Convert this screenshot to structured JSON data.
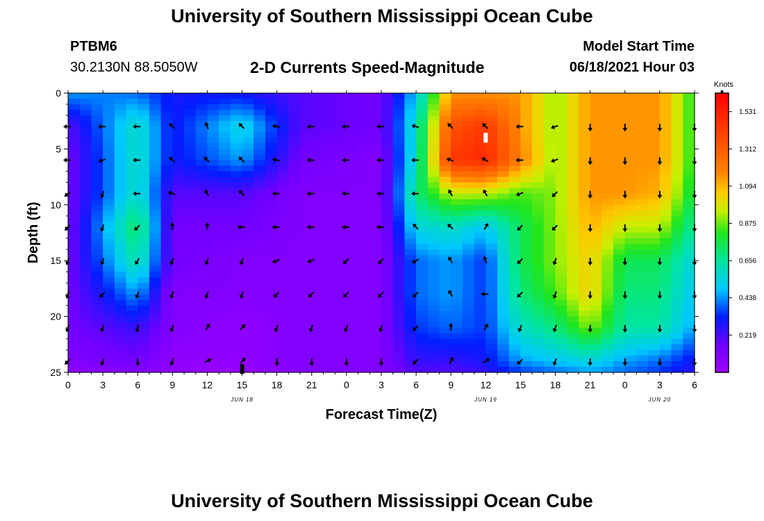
{
  "header": {
    "title": "University of Southern Mississippi Ocean Cube",
    "station": "PTBM6",
    "coords": "30.2130N  88.5050W",
    "subtitle": "2-D Currents Speed-Magnitude",
    "model_start_label": "Model Start Time",
    "model_start_value": "06/18/2021 Hour 03"
  },
  "footer": {
    "title": "University of Southern Mississippi Ocean Cube"
  },
  "chart_data": {
    "type": "heatmap",
    "title": "2-D Currents Speed-Magnitude",
    "xlabel": "Forecast Time(Z)",
    "ylabel": "Depth (ft)",
    "x_range": [
      0,
      54
    ],
    "y_range": [
      0,
      25
    ],
    "x_ticks": [
      0,
      3,
      6,
      9,
      12,
      15,
      18,
      21,
      24,
      27,
      30,
      33,
      36,
      39,
      42,
      45,
      48,
      51,
      54
    ],
    "x_tick_labels": [
      "0",
      "3",
      "6",
      "9",
      "12",
      "15",
      "18",
      "21",
      "0",
      "3",
      "6",
      "9",
      "12",
      "15",
      "18",
      "21",
      "0",
      "3",
      "6"
    ],
    "date_labels": [
      {
        "hour": 15,
        "label": "JUN 18"
      },
      {
        "hour": 36,
        "label": "JUN 19"
      },
      {
        "hour": 51,
        "label": "JUN 20"
      }
    ],
    "y_ticks": [
      0,
      5,
      10,
      15,
      20,
      25
    ],
    "colorbar": {
      "unit": "Knots",
      "min": 0,
      "max": 1.64,
      "tick_values": [
        0.219,
        0.438,
        0.656,
        0.875,
        1.094,
        1.312,
        1.531
      ],
      "tick_labels": [
        "0.219",
        "0.438",
        "0.656",
        "0.875",
        "1.094",
        "1.312",
        "1.531"
      ]
    },
    "speed_grid": {
      "times": [
        0,
        6,
        9,
        15,
        20,
        27,
        30,
        33,
        36,
        39,
        42,
        45,
        48,
        51,
        54
      ],
      "depths": [
        0,
        3,
        6,
        9,
        12,
        15,
        18,
        21,
        24,
        25
      ],
      "values": [
        [
          0.45,
          0.4,
          0.3,
          0.3,
          0.2,
          0.15,
          0.5,
          1.15,
          1.15,
          1.15,
          0.9,
          1.15,
          1.15,
          1.15,
          0.8
        ],
        [
          0.2,
          0.6,
          0.3,
          0.55,
          0.2,
          0.15,
          0.6,
          1.35,
          1.45,
          1.15,
          0.9,
          1.15,
          1.15,
          1.15,
          0.8
        ],
        [
          0.15,
          0.6,
          0.3,
          0.45,
          0.15,
          0.1,
          0.6,
          1.45,
          1.5,
          1.2,
          0.9,
          1.15,
          1.15,
          1.15,
          0.8
        ],
        [
          0.15,
          0.6,
          0.2,
          0.2,
          0.1,
          0.1,
          0.7,
          0.95,
          0.95,
          0.85,
          0.9,
          1.15,
          1.15,
          1.1,
          0.75
        ],
        [
          0.15,
          0.75,
          0.15,
          0.15,
          0.1,
          0.1,
          0.55,
          0.6,
          0.5,
          0.75,
          0.9,
          1.1,
          0.95,
          0.95,
          0.65
        ],
        [
          0.15,
          0.65,
          0.15,
          0.1,
          0.1,
          0.1,
          0.4,
          0.45,
          0.35,
          0.75,
          0.9,
          1.05,
          0.75,
          0.75,
          0.55
        ],
        [
          0.15,
          0.45,
          0.1,
          0.1,
          0.1,
          0.1,
          0.4,
          0.45,
          0.35,
          0.7,
          0.85,
          1.05,
          0.7,
          0.7,
          0.5
        ],
        [
          0.15,
          0.25,
          0.1,
          0.05,
          0.1,
          0.1,
          0.35,
          0.4,
          0.35,
          0.6,
          0.7,
          0.9,
          0.65,
          0.65,
          0.45
        ],
        [
          0.1,
          0.15,
          0.05,
          0.05,
          0.1,
          0.1,
          0.25,
          0.25,
          0.3,
          0.45,
          0.5,
          0.55,
          0.45,
          0.4,
          0.3
        ],
        [
          0.05,
          0.1,
          0.05,
          0.02,
          0.1,
          0.1,
          0.2,
          0.2,
          0.25,
          0.35,
          0.4,
          0.45,
          0.4,
          0.35,
          0.25
        ]
      ]
    },
    "direction_grid": {
      "times": [
        0,
        3,
        6,
        9,
        12,
        15,
        18,
        21,
        24,
        27,
        30,
        33,
        36,
        39,
        42,
        45,
        48,
        51,
        54
      ],
      "depths": [
        3,
        6,
        9,
        12,
        15,
        18,
        21,
        24
      ],
      "note": "direction the current flows toward, degrees clockwise from north",
      "values": [
        [
          270,
          270,
          270,
          315,
          340,
          315,
          280,
          270,
          270,
          270,
          285,
          315,
          315,
          270,
          250,
          180,
          180,
          180,
          180
        ],
        [
          270,
          250,
          270,
          315,
          315,
          315,
          280,
          270,
          270,
          270,
          270,
          290,
          300,
          270,
          250,
          180,
          180,
          180,
          180
        ],
        [
          230,
          200,
          270,
          290,
          330,
          315,
          270,
          270,
          270,
          270,
          270,
          330,
          330,
          250,
          225,
          180,
          180,
          180,
          180
        ],
        [
          225,
          200,
          225,
          0,
          0,
          270,
          270,
          270,
          270,
          270,
          315,
          315,
          30,
          225,
          225,
          180,
          180,
          180,
          180
        ],
        [
          200,
          200,
          210,
          200,
          200,
          200,
          250,
          250,
          225,
          225,
          240,
          330,
          340,
          225,
          200,
          180,
          180,
          180,
          180
        ],
        [
          200,
          225,
          200,
          200,
          200,
          200,
          225,
          225,
          225,
          225,
          225,
          330,
          270,
          225,
          200,
          180,
          180,
          180,
          180
        ],
        [
          200,
          200,
          190,
          200,
          30,
          45,
          200,
          200,
          200,
          200,
          225,
          0,
          30,
          200,
          200,
          180,
          180,
          180,
          180
        ],
        [
          225,
          200,
          180,
          200,
          60,
          45,
          180,
          180,
          180,
          180,
          225,
          30,
          60,
          225,
          200,
          180,
          180,
          180,
          180
        ]
      ]
    },
    "markers": [
      {
        "time": 15,
        "depth": 24.7,
        "color": "#000000"
      },
      {
        "time": 36,
        "depth": 4,
        "color": "#ffffff"
      }
    ]
  }
}
